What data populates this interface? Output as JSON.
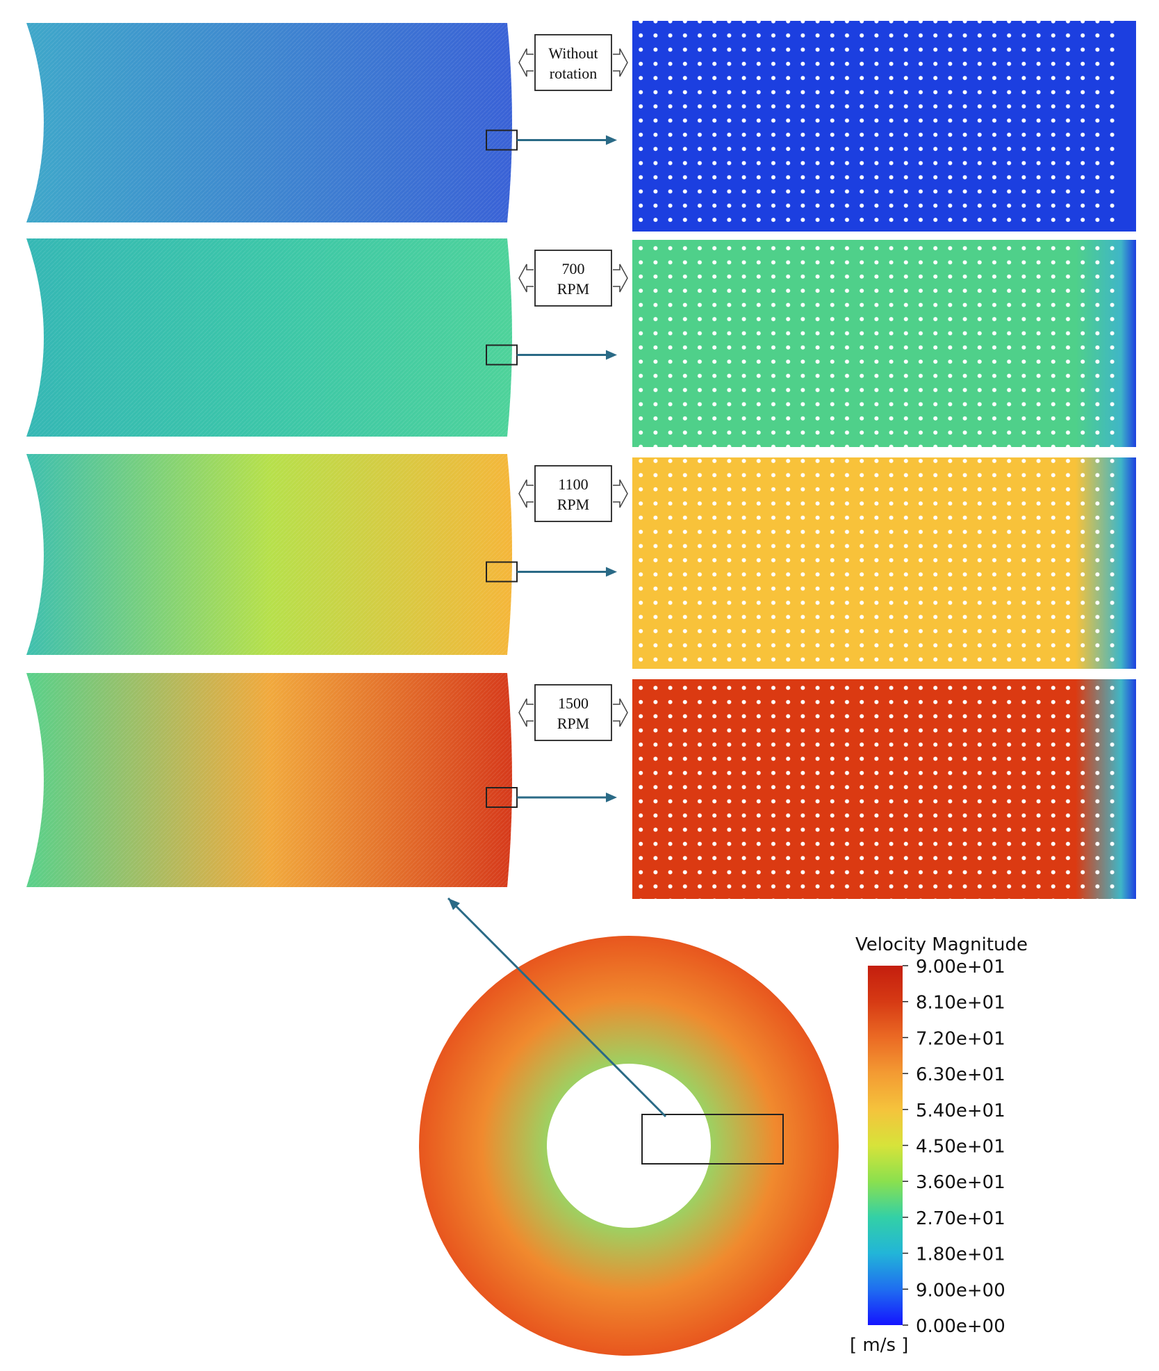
{
  "cases": [
    {
      "label_lines": [
        "Without",
        "rotation"
      ],
      "colors": {
        "left": "#3fa7c9",
        "mid": "#3f86cf",
        "right": "#3a62d6",
        "zoom": "#1c3fe0"
      }
    },
    {
      "label_lines": [
        "700",
        "RPM"
      ],
      "colors": {
        "left": "#35b7b4",
        "mid": "#3cc6a8",
        "right": "#4ed29a",
        "zoom": "#4fd08a"
      }
    },
    {
      "label_lines": [
        "1100",
        "RPM"
      ],
      "colors": {
        "left": "#3ebfae",
        "mid": "#b6e04b",
        "right": "#f5b63a",
        "zoom": "#f8c23a"
      }
    },
    {
      "label_lines": [
        "1500",
        "RPM"
      ],
      "colors": {
        "left": "#58d08a",
        "mid": "#f1a93d",
        "right": "#d63a1b",
        "zoom": "#db3a12"
      }
    }
  ],
  "legend": {
    "title": "Velocity Magnitude",
    "unit": "[ m/s ]",
    "ticks": [
      "9.00e+01",
      "8.10e+01",
      "7.20e+01",
      "6.30e+01",
      "5.40e+01",
      "4.50e+01",
      "3.60e+01",
      "2.70e+01",
      "1.80e+01",
      "9.00e+00",
      "0.00e+00"
    ],
    "colormap": [
      "#1414ff",
      "#1f6ef0",
      "#22b5d8",
      "#33d0a6",
      "#8be04e",
      "#d7e33a",
      "#f5c33c",
      "#f39b33",
      "#eb6a24",
      "#d63a14",
      "#c41e0e"
    ],
    "range": [
      0,
      90
    ]
  },
  "annulus": {
    "outer_color": "#e8561e",
    "inner_color": "#9fcf61",
    "mid_color": "#f08a2e"
  },
  "colors": {
    "arrow": "#2a6a86",
    "frame": "#222222"
  }
}
